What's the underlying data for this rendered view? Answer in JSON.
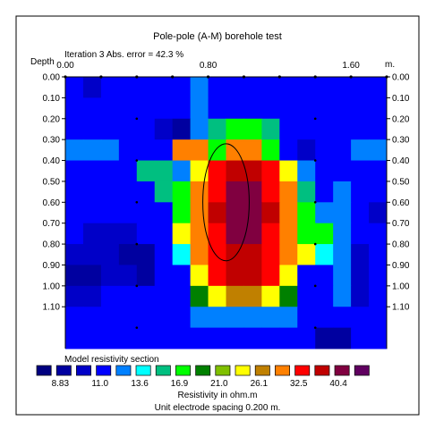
{
  "chart_data": {
    "type": "heatmap",
    "title": "Pole-pole (A-M) borehole test",
    "subtitle": "Iteration 3 Abs. error = 42.3 %",
    "x_axis": {
      "label": "m.",
      "ticks": [
        "0.00",
        "0.80",
        "1.60"
      ],
      "range": [
        0.0,
        1.8
      ]
    },
    "y_axis": {
      "label": "Depth",
      "ticks": [
        "0.00",
        "0.10",
        "0.20",
        "0.30",
        "0.40",
        "0.50",
        "0.60",
        "0.70",
        "0.80",
        "0.90",
        "1.00",
        "1.10"
      ],
      "range": [
        0.0,
        1.3
      ]
    },
    "section_label": "Model resistivity section",
    "legend": {
      "labels": [
        "8.83",
        "11.0",
        "13.6",
        "16.9",
        "21.0",
        "26.1",
        "32.5",
        "40.4"
      ],
      "colors": [
        "#000080",
        "#0000A0",
        "#0000C8",
        "#0000FF",
        "#0080FF",
        "#00FFFF",
        "#00BF80",
        "#00FF00",
        "#008000",
        "#80C000",
        "#FFFF00",
        "#C08000",
        "#FF8000",
        "#FF0000",
        "#C00000",
        "#800040",
        "#600060"
      ],
      "title": "Resistivity in ohm.m",
      "note": "Unit electrode spacing 0.200 m."
    },
    "column_edges_m": [
      0.0,
      0.1,
      0.2,
      0.3,
      0.4,
      0.5,
      0.6,
      0.7,
      0.8,
      0.9,
      1.0,
      1.1,
      1.2,
      1.3,
      1.4,
      1.5,
      1.6,
      1.7,
      1.8
    ],
    "row_edges_m": [
      0.0,
      0.1,
      0.2,
      0.3,
      0.4,
      0.5,
      0.6,
      0.7,
      0.8,
      0.9,
      1.0,
      1.1,
      1.2,
      1.3
    ],
    "cells": [
      [
        3,
        2,
        3,
        3,
        3,
        3,
        3,
        4,
        3,
        3,
        3,
        3,
        3,
        3,
        3,
        3,
        3,
        3
      ],
      [
        3,
        3,
        3,
        3,
        3,
        3,
        3,
        4,
        3,
        3,
        3,
        3,
        3,
        3,
        3,
        3,
        3,
        3
      ],
      [
        3,
        3,
        3,
        3,
        3,
        2,
        1,
        4,
        6,
        7,
        7,
        6,
        3,
        3,
        3,
        3,
        3,
        3
      ],
      [
        4,
        4,
        4,
        3,
        3,
        3,
        12,
        12,
        7,
        12,
        12,
        7,
        3,
        2,
        3,
        3,
        4,
        4
      ],
      [
        3,
        3,
        3,
        3,
        6,
        6,
        4,
        10,
        13,
        14,
        14,
        13,
        10,
        4,
        3,
        3,
        3,
        3
      ],
      [
        3,
        3,
        3,
        3,
        3,
        6,
        7,
        12,
        13,
        15,
        15,
        13,
        12,
        6,
        3,
        4,
        3,
        3
      ],
      [
        3,
        3,
        3,
        3,
        3,
        3,
        7,
        12,
        14,
        15,
        15,
        14,
        12,
        7,
        4,
        4,
        3,
        2
      ],
      [
        3,
        2,
        2,
        2,
        3,
        3,
        10,
        12,
        13,
        15,
        15,
        13,
        12,
        7,
        7,
        4,
        3,
        3
      ],
      [
        2,
        2,
        2,
        1,
        1,
        3,
        5,
        12,
        13,
        14,
        14,
        13,
        12,
        10,
        5,
        4,
        2,
        3
      ],
      [
        1,
        1,
        2,
        2,
        1,
        3,
        3,
        10,
        13,
        14,
        14,
        13,
        10,
        3,
        3,
        4,
        2,
        3
      ],
      [
        2,
        2,
        3,
        3,
        3,
        3,
        3,
        8,
        10,
        11,
        11,
        10,
        8,
        3,
        3,
        4,
        2,
        3
      ],
      [
        3,
        3,
        3,
        3,
        3,
        3,
        3,
        4,
        4,
        4,
        4,
        4,
        4,
        3,
        3,
        3,
        3,
        3
      ],
      [
        3,
        3,
        3,
        3,
        3,
        3,
        3,
        3,
        3,
        3,
        3,
        3,
        3,
        3,
        1,
        1,
        3,
        3
      ]
    ],
    "electrode_x_m": [
      0.0,
      0.2,
      0.4,
      0.6,
      0.8,
      1.0,
      1.2,
      1.4,
      1.6,
      1.8
    ],
    "borehole_electrode_depths_m": [
      0.0,
      0.2,
      0.4,
      0.6,
      0.8,
      1.0,
      1.2
    ],
    "borehole_x_m": [
      0.4,
      1.4
    ],
    "target_ellipse": {
      "cx": 0.9,
      "cy": 0.6,
      "rx": 0.13,
      "ry": 0.28
    },
    "grid": false
  }
}
